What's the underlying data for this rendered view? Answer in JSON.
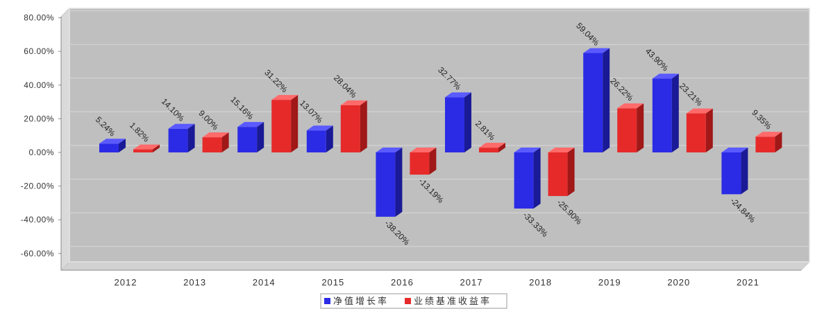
{
  "chart_data": {
    "type": "bar",
    "style": "3d",
    "categories": [
      "2012",
      "2013",
      "2014",
      "2015",
      "2016",
      "2017",
      "2018",
      "2019",
      "2020",
      "2021"
    ],
    "series": [
      {
        "name": "净值增长率",
        "color": "#2b2be6",
        "side_color": "#1a1a96",
        "top_color": "#5a5aff",
        "values": [
          5.24,
          14.1,
          15.16,
          13.07,
          -38.2,
          32.77,
          -33.33,
          59.04,
          43.9,
          -24.84
        ],
        "labels": [
          "5.24%",
          "14.10%",
          "15.16%",
          "13.07%",
          "-38.20%",
          "32.77%",
          "-33.33%",
          "59.04%",
          "43.90%",
          "-24.84%"
        ]
      },
      {
        "name": "业绩基准收益率",
        "color": "#e62a2a",
        "side_color": "#a01818",
        "top_color": "#ff6a6a",
        "values": [
          1.82,
          9.0,
          31.22,
          28.04,
          -13.19,
          2.81,
          -25.9,
          26.22,
          23.21,
          9.35
        ],
        "labels": [
          "1.82%",
          "9.00%",
          "31.22%",
          "28.04%",
          "-13.19%",
          "2.81%",
          "-25.90%",
          "26.22%",
          "23.21%",
          "9.35%"
        ]
      }
    ],
    "ylim": [
      -60,
      80
    ],
    "y_ticks": [
      {
        "value": 80,
        "label": "80.00%"
      },
      {
        "value": 60,
        "label": "60.00%"
      },
      {
        "value": 40,
        "label": "40.00%"
      },
      {
        "value": 20,
        "label": "20.00%"
      },
      {
        "value": 0,
        "label": "0.00%"
      },
      {
        "value": -20,
        "label": "-20.00%"
      },
      {
        "value": -40,
        "label": "-40.00%"
      },
      {
        "value": -60,
        "label": "-60.00%"
      }
    ],
    "grid": true,
    "legend": "bottom-center",
    "colors": {
      "wall": "#bfbfbf",
      "side_wall": "#dadada",
      "floor": "#d2d2d2",
      "gridline": "#d8d8d8"
    }
  }
}
